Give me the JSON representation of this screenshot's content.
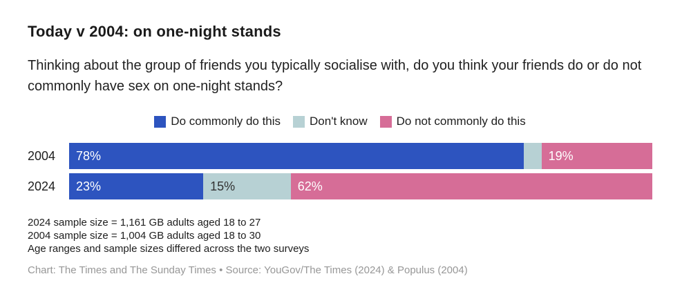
{
  "chart_data": {
    "type": "bar",
    "orientation": "horizontal_stacked",
    "title": "Today v 2004: on one-night stands",
    "subtitle": "Thinking about the group of friends you typically socialise with, do you think your friends do or do not commonly have sex on one-night stands?",
    "categories": [
      "2004",
      "2024"
    ],
    "series": [
      {
        "name": "Do commonly do this",
        "color": "#2d54bf",
        "label_text_color": "#ffffff",
        "values": [
          78,
          23
        ]
      },
      {
        "name": "Don't know",
        "color": "#b7d1d4",
        "label_text_color": "#333333",
        "values": [
          3,
          15
        ]
      },
      {
        "name": "Do not commonly do this",
        "color": "#d66d97",
        "label_text_color": "#ffffff",
        "values": [
          19,
          62
        ]
      }
    ],
    "value_labels": [
      [
        "78%",
        "",
        "19%"
      ],
      [
        "23%",
        "15%",
        "62%"
      ]
    ],
    "xlim": [
      0,
      100
    ],
    "legend_position": "top-center",
    "grid": false
  },
  "notes": [
    "2024 sample size = 1,161 GB adults aged 18 to 27",
    "2004 sample size = 1,004 GB adults aged 18 to 30",
    "Age ranges and sample sizes differed across the two surveys"
  ],
  "credit": "Chart: The Times and The Sunday Times • Source: YouGov/The Times (2024) & Populus (2004)"
}
